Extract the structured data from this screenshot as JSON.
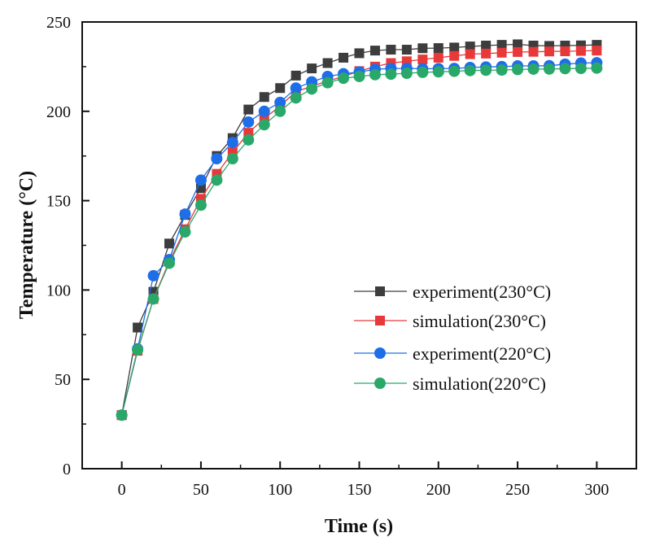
{
  "chart_data": {
    "type": "line",
    "title": "",
    "xlabel": "Time (s)",
    "ylabel": "Temperature (°C)",
    "xlim": [
      -25,
      325
    ],
    "ylim": [
      0,
      250
    ],
    "x_ticks": [
      0,
      50,
      100,
      150,
      200,
      250,
      300
    ],
    "y_ticks": [
      0,
      50,
      100,
      150,
      200,
      250
    ],
    "grid": false,
    "legend_position": "center-right",
    "x": [
      0,
      10,
      20,
      30,
      40,
      50,
      60,
      70,
      80,
      90,
      100,
      110,
      120,
      130,
      140,
      150,
      160,
      170,
      180,
      190,
      200,
      210,
      220,
      230,
      240,
      250,
      260,
      270,
      280,
      290,
      300
    ],
    "series": [
      {
        "name": "experiment(230°C)",
        "color": "#3d3d3d",
        "marker": "square",
        "values": [
          30,
          79,
          99,
          126,
          142,
          157,
          175,
          185,
          201,
          208,
          213,
          220,
          224,
          227,
          230,
          232.5,
          234,
          234.5,
          234.5,
          235.3,
          235.4,
          235.7,
          236.3,
          236.8,
          237.2,
          237.5,
          236.8,
          236.6,
          236.8,
          236.9,
          237.2
        ]
      },
      {
        "name": "simulation(230°C)",
        "color": "#e8393a",
        "marker": "square",
        "values": [
          30,
          66,
          95,
          116,
          134,
          151,
          165,
          177,
          188,
          196,
          203,
          211,
          214,
          217,
          219.5,
          222.5,
          225,
          227,
          228,
          229,
          230,
          231,
          232,
          232.3,
          232.8,
          233.2,
          233.3,
          233.5,
          233.6,
          233.8,
          234
        ]
      },
      {
        "name": "experiment(220°C)",
        "color": "#1e6ee8",
        "marker": "circle",
        "values": [
          30,
          67,
          108,
          117,
          142.5,
          161.5,
          173.5,
          182.5,
          194,
          200,
          205,
          213,
          216.5,
          219.5,
          221,
          222,
          223.5,
          224,
          224,
          223.8,
          223.9,
          224,
          224.5,
          224.8,
          225,
          225.4,
          225.4,
          225.5,
          226.4,
          227,
          227.2
        ]
      },
      {
        "name": "simulation(220°C)",
        "color": "#2aa86a",
        "marker": "circle",
        "values": [
          30,
          66.5,
          95,
          115,
          132.5,
          147.5,
          161.5,
          173.5,
          184,
          192.5,
          200,
          207.5,
          212.5,
          216,
          218.5,
          219.5,
          220.5,
          220.8,
          221.3,
          221.8,
          222.1,
          222.4,
          222.8,
          223,
          223.1,
          223.4,
          223.6,
          223.7,
          223.9,
          224,
          224.2
        ]
      }
    ]
  }
}
